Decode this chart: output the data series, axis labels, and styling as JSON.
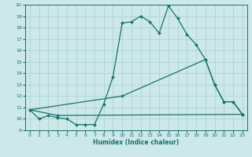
{
  "xlabel": "Humidex (Indice chaleur)",
  "xlim": [
    -0.5,
    23.5
  ],
  "ylim": [
    9,
    20
  ],
  "xticks": [
    0,
    1,
    2,
    3,
    4,
    5,
    6,
    7,
    8,
    9,
    10,
    11,
    12,
    13,
    14,
    15,
    16,
    17,
    18,
    19,
    20,
    21,
    22,
    23
  ],
  "yticks": [
    9,
    10,
    11,
    12,
    13,
    14,
    15,
    16,
    17,
    18,
    19,
    20
  ],
  "bg_color": "#cce8e8",
  "grid_color": "#aed4d4",
  "line_color": "#1a7070",
  "series1": [
    [
      0,
      10.8
    ],
    [
      1,
      10.0
    ],
    [
      2,
      10.3
    ],
    [
      3,
      10.1
    ],
    [
      4,
      10.0
    ],
    [
      5,
      9.5
    ],
    [
      6,
      9.5
    ],
    [
      7,
      9.5
    ],
    [
      8,
      11.3
    ],
    [
      9,
      13.7
    ],
    [
      10,
      18.4
    ],
    [
      11,
      18.5
    ],
    [
      12,
      19.0
    ],
    [
      13,
      18.5
    ],
    [
      14,
      17.5
    ],
    [
      15,
      19.9
    ],
    [
      16,
      18.8
    ],
    [
      17,
      17.4
    ],
    [
      18,
      16.5
    ],
    [
      19,
      15.2
    ],
    [
      20,
      13.0
    ],
    [
      21,
      11.5
    ],
    [
      22,
      11.5
    ],
    [
      23,
      10.4
    ]
  ],
  "series2": [
    [
      0,
      10.8
    ],
    [
      3,
      10.3
    ],
    [
      23,
      10.4
    ]
  ],
  "series3": [
    [
      0,
      10.8
    ],
    [
      10,
      12.0
    ],
    [
      19,
      15.2
    ],
    [
      20,
      13.0
    ],
    [
      21,
      11.5
    ],
    [
      22,
      11.5
    ],
    [
      23,
      10.4
    ]
  ],
  "figsize": [
    3.2,
    2.0
  ],
  "dpi": 100
}
